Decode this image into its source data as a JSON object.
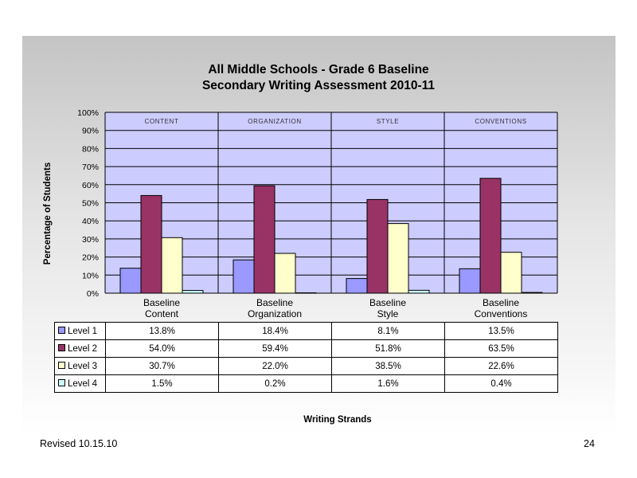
{
  "chart_data": {
    "type": "bar",
    "title_line1": "All Middle Schools - Grade 6 Baseline",
    "title_line2": "Secondary Writing Assessment 2010-11",
    "xlabel": "Writing Strands",
    "ylabel": "Percentage of Students",
    "ylim": [
      0,
      100
    ],
    "yticks": [
      "0%",
      "10%",
      "20%",
      "30%",
      "40%",
      "50%",
      "60%",
      "70%",
      "80%",
      "90%",
      "100%"
    ],
    "panel_labels": [
      "CONTENT",
      "ORGANIZATION",
      "STYLE",
      "CONVENTIONS"
    ],
    "categories": [
      "Baseline\nContent",
      "Baseline\nOrganization",
      "Baseline\nStyle",
      "Baseline\nConventions"
    ],
    "series": [
      {
        "name": "Level 1",
        "color": "#9999ff",
        "values": [
          13.8,
          18.4,
          8.1,
          13.5
        ],
        "labels": [
          "13.8%",
          "18.4%",
          "8.1%",
          "13.5%"
        ]
      },
      {
        "name": "Level 2",
        "color": "#993366",
        "values": [
          54.0,
          59.4,
          51.8,
          63.5
        ],
        "labels": [
          "54.0%",
          "59.4%",
          "51.8%",
          "63.5%"
        ]
      },
      {
        "name": "Level 3",
        "color": "#ffffcc",
        "values": [
          30.7,
          22.0,
          38.5,
          22.6
        ],
        "labels": [
          "30.7%",
          "22.0%",
          "38.5%",
          "22.6%"
        ]
      },
      {
        "name": "Level 4",
        "color": "#ccffff",
        "values": [
          1.5,
          0.2,
          1.6,
          0.4
        ],
        "labels": [
          "1.5%",
          "0.2%",
          "1.6%",
          "0.4%"
        ]
      }
    ],
    "plot_background": "#ccccff",
    "grid": true,
    "legend_placement": "data-table"
  },
  "footer": {
    "revised": "Revised  10.15.10",
    "page_number": "24"
  }
}
